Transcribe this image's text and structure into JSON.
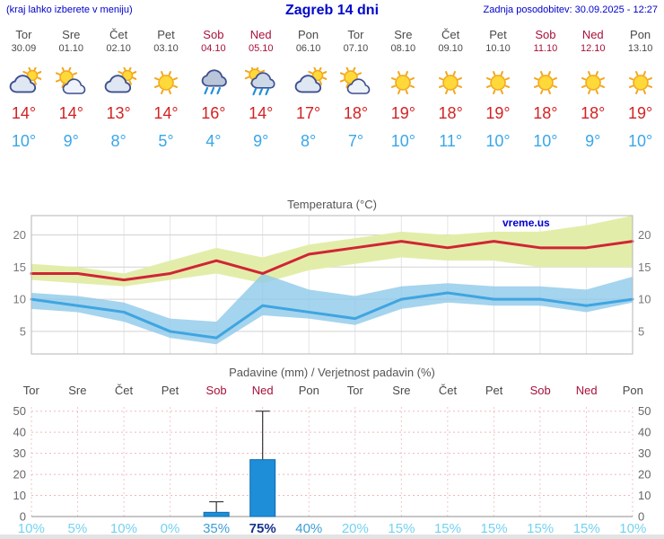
{
  "header": {
    "left_note": "(kraj lahko izberete v meniju)",
    "title": "Zagreb 14 dni",
    "last_update": "Zadnja posodobitev: 30.09.2025 - 12:27"
  },
  "colors": {
    "accent_blue": "#0000cd",
    "temp_max_red": "#d42222",
    "temp_min_blue": "#3aa6e8",
    "weekend_red": "#a8103a",
    "bar_blue": "#1e8ed8",
    "band_yellow_green": "#e3edaa",
    "band_light_blue": "#8fc9ea"
  },
  "days": [
    {
      "name": "Tor",
      "date": "30.09",
      "icon": "cloudy-icon",
      "tmax": "14°",
      "tmin": "10°",
      "weekend": false
    },
    {
      "name": "Sre",
      "date": "01.10",
      "icon": "partly-cloudy-icon",
      "tmax": "14°",
      "tmin": "9°",
      "weekend": false
    },
    {
      "name": "Čet",
      "date": "02.10",
      "icon": "cloudy-icon",
      "tmax": "13°",
      "tmin": "8°",
      "weekend": false
    },
    {
      "name": "Pet",
      "date": "03.10",
      "icon": "sunny-icon",
      "tmax": "14°",
      "tmin": "5°",
      "weekend": false
    },
    {
      "name": "Sob",
      "date": "04.10",
      "icon": "rain-icon",
      "tmax": "16°",
      "tmin": "4°",
      "weekend": true
    },
    {
      "name": "Ned",
      "date": "05.10",
      "icon": "sun-rain-icon",
      "tmax": "14°",
      "tmin": "9°",
      "weekend": true
    },
    {
      "name": "Pon",
      "date": "06.10",
      "icon": "cloudy-icon",
      "tmax": "17°",
      "tmin": "8°",
      "weekend": false
    },
    {
      "name": "Tor",
      "date": "07.10",
      "icon": "partly-cloudy-icon",
      "tmax": "18°",
      "tmin": "7°",
      "weekend": false
    },
    {
      "name": "Sre",
      "date": "08.10",
      "icon": "sunny-icon",
      "tmax": "19°",
      "tmin": "10°",
      "weekend": false
    },
    {
      "name": "Čet",
      "date": "09.10",
      "icon": "sunny-icon",
      "tmax": "18°",
      "tmin": "11°",
      "weekend": false
    },
    {
      "name": "Pet",
      "date": "10.10",
      "icon": "sunny-icon",
      "tmax": "19°",
      "tmin": "10°",
      "weekend": false
    },
    {
      "name": "Sob",
      "date": "11.10",
      "icon": "sunny-icon",
      "tmax": "18°",
      "tmin": "10°",
      "weekend": true
    },
    {
      "name": "Ned",
      "date": "12.10",
      "icon": "sunny-icon",
      "tmax": "18°",
      "tmin": "9°",
      "weekend": true
    },
    {
      "name": "Pon",
      "date": "13.10",
      "icon": "sunny-icon",
      "tmax": "19°",
      "tmin": "10°",
      "weekend": false
    }
  ],
  "chart_data": [
    {
      "type": "line",
      "title": "Temperatura (°C)",
      "watermark": "vreme.us",
      "categories": [
        "Tor",
        "Sre",
        "Čet",
        "Pet",
        "Sob",
        "Ned",
        "Pon",
        "Tor",
        "Sre",
        "Čet",
        "Pet",
        "Sob",
        "Ned",
        "Pon"
      ],
      "ylim": [
        1.5,
        23
      ],
      "yticks": [
        5,
        10,
        15,
        20
      ],
      "series": [
        {
          "name": "temp-max",
          "color": "#d02535",
          "values": [
            14,
            14,
            13,
            14,
            16,
            14,
            17,
            18,
            19,
            18,
            19,
            18,
            18,
            19
          ]
        },
        {
          "name": "temp-min",
          "color": "#3fa5e0",
          "values": [
            10,
            9,
            8,
            5,
            4,
            9,
            8,
            7,
            10,
            11,
            10,
            10,
            9,
            10
          ]
        }
      ],
      "bands": [
        {
          "name": "max-range",
          "color": "#e3edaa",
          "opacity": 1,
          "top": [
            15.5,
            15,
            14,
            16,
            18,
            16.5,
            18.5,
            19.5,
            20.5,
            20,
            20.5,
            20.5,
            21.5,
            23
          ],
          "bottom": [
            13,
            12.5,
            12,
            13,
            14,
            12.5,
            14.5,
            15.5,
            16.5,
            16,
            16,
            15,
            15,
            15
          ]
        },
        {
          "name": "min-range",
          "color": "#8fc9ea",
          "opacity": 0.8,
          "top": [
            11,
            10.5,
            9.5,
            7,
            6.5,
            14,
            11.5,
            10.5,
            12,
            12.5,
            12,
            12,
            11.5,
            13.5
          ],
          "bottom": [
            8.5,
            8,
            6.5,
            4,
            3,
            7.5,
            7,
            6,
            8.5,
            9.5,
            9,
            9,
            8,
            9.5
          ]
        }
      ]
    },
    {
      "type": "bar",
      "title": "Padavine (mm) / Verjetnost padavin (%)",
      "categories": [
        "Tor",
        "Sre",
        "Čet",
        "Pet",
        "Sob",
        "Ned",
        "Pon",
        "Tor",
        "Sre",
        "Čet",
        "Pet",
        "Sob",
        "Ned",
        "Pon"
      ],
      "ylim": [
        0,
        52
      ],
      "yticks": [
        0,
        10,
        20,
        30,
        40,
        50
      ],
      "bar_color": "#1e8ed8",
      "values": [
        0,
        0,
        0,
        0,
        2,
        27,
        0,
        0,
        0,
        0,
        0,
        0,
        0,
        0
      ],
      "whiskers": [
        0,
        0,
        0,
        0,
        7,
        50,
        0,
        0,
        0,
        0,
        0,
        0,
        0,
        0
      ],
      "probabilities": [
        {
          "label": "10%",
          "style": "light"
        },
        {
          "label": "5%",
          "style": "light"
        },
        {
          "label": "10%",
          "style": "light"
        },
        {
          "label": "0%",
          "style": "light"
        },
        {
          "label": "35%",
          "style": "medium"
        },
        {
          "label": "75%",
          "style": "strong"
        },
        {
          "label": "40%",
          "style": "medium"
        },
        {
          "label": "20%",
          "style": "light"
        },
        {
          "label": "15%",
          "style": "light"
        },
        {
          "label": "15%",
          "style": "light"
        },
        {
          "label": "15%",
          "style": "light"
        },
        {
          "label": "15%",
          "style": "light"
        },
        {
          "label": "15%",
          "style": "light"
        },
        {
          "label": "10%",
          "style": "light"
        }
      ]
    }
  ]
}
